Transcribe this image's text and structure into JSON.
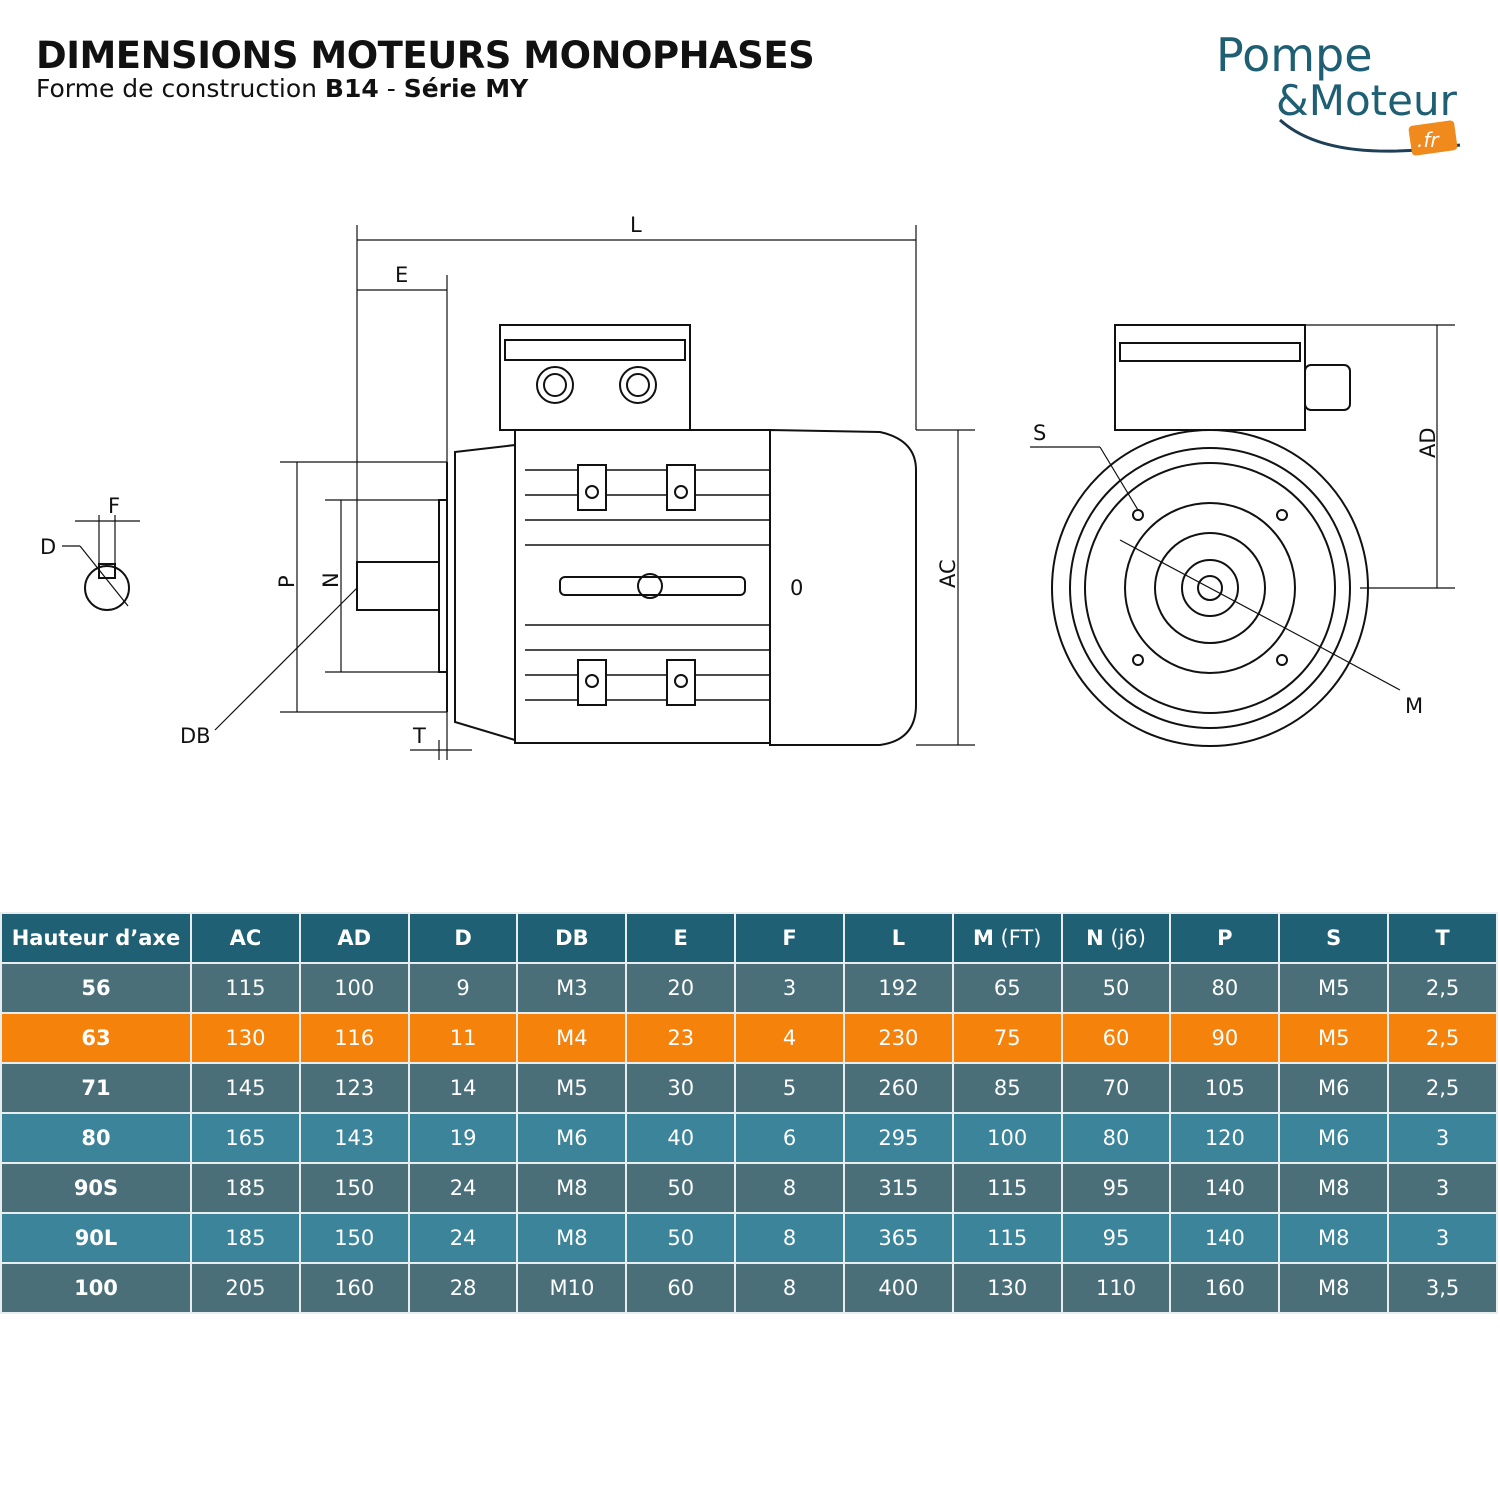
{
  "header": {
    "title": "DIMENSIONS MOTEURS MONOPHASES",
    "subtitle_prefix": "Forme de construction ",
    "subtitle_bold1": "B14",
    "subtitle_mid": " - ",
    "subtitle_bold2": "Série MY"
  },
  "logo": {
    "line1": "Pompe",
    "line2": "&Moteur",
    "suffix": ".fr",
    "brand_color": "#1f5f74",
    "accent_color": "#f08a1c"
  },
  "drawing": {
    "labels": {
      "L": "L",
      "E": "E",
      "F": "F",
      "D": "D",
      "P": "P",
      "N": "N",
      "DB": "DB",
      "T": "T",
      "AC": "AC",
      "AD": "AD",
      "S": "S",
      "M": "M",
      "zero": "0"
    }
  },
  "table": {
    "columns": [
      {
        "bold": "Hauteur d’axe",
        "thin": ""
      },
      {
        "bold": "AC",
        "thin": ""
      },
      {
        "bold": "AD",
        "thin": ""
      },
      {
        "bold": "D",
        "thin": ""
      },
      {
        "bold": "DB",
        "thin": ""
      },
      {
        "bold": "E",
        "thin": ""
      },
      {
        "bold": "F",
        "thin": ""
      },
      {
        "bold": "L",
        "thin": ""
      },
      {
        "bold": "M",
        "thin": " (FT)"
      },
      {
        "bold": "N",
        "thin": " (j6)"
      },
      {
        "bold": "P",
        "thin": ""
      },
      {
        "bold": "S",
        "thin": ""
      },
      {
        "bold": "T",
        "thin": ""
      }
    ],
    "rows": [
      {
        "style": "grey",
        "cells": [
          "56",
          "115",
          "100",
          "9",
          "M3",
          "20",
          "3",
          "192",
          "65",
          "50",
          "80",
          "M5",
          "2,5"
        ]
      },
      {
        "style": "hl",
        "cells": [
          "63",
          "130",
          "116",
          "11",
          "M4",
          "23",
          "4",
          "230",
          "75",
          "60",
          "90",
          "M5",
          "2,5"
        ]
      },
      {
        "style": "grey",
        "cells": [
          "71",
          "145",
          "123",
          "14",
          "M5",
          "30",
          "5",
          "260",
          "85",
          "70",
          "105",
          "M6",
          "2,5"
        ]
      },
      {
        "style": "blue",
        "cells": [
          "80",
          "165",
          "143",
          "19",
          "M6",
          "40",
          "6",
          "295",
          "100",
          "80",
          "120",
          "M6",
          "3"
        ]
      },
      {
        "style": "grey",
        "cells": [
          "90S",
          "185",
          "150",
          "24",
          "M8",
          "50",
          "8",
          "315",
          "115",
          "95",
          "140",
          "M8",
          "3"
        ]
      },
      {
        "style": "blue",
        "cells": [
          "90L",
          "185",
          "150",
          "24",
          "M8",
          "50",
          "8",
          "365",
          "115",
          "95",
          "140",
          "M8",
          "3"
        ]
      },
      {
        "style": "grey",
        "cells": [
          "100",
          "205",
          "160",
          "28",
          "M10",
          "60",
          "8",
          "400",
          "130",
          "110",
          "160",
          "M8",
          "3,5"
        ]
      }
    ],
    "colors": {
      "header": "#1f6075",
      "grey_row": "#4a6f78",
      "blue_row": "#3b8499",
      "highlight_row": "#f5820a"
    }
  }
}
